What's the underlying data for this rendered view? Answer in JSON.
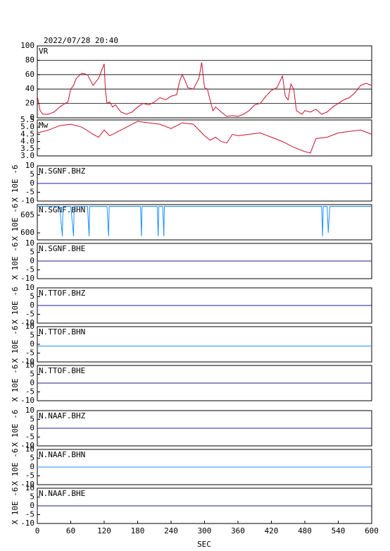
{
  "title": "2022/07/28 20:40",
  "x_axis": {
    "xlim": [
      0,
      600
    ],
    "xticks": [
      0,
      60,
      120,
      180,
      240,
      300,
      360,
      420,
      480,
      540,
      600
    ],
    "xlabel": "SEC"
  },
  "chart_data": [
    {
      "type": "line",
      "label": "VR",
      "color": "#c8102e",
      "grid": true,
      "ylim": [
        0,
        100
      ],
      "yticks": [
        0,
        20,
        40,
        60,
        80,
        100
      ],
      "x": [
        0,
        5,
        10,
        20,
        30,
        40,
        50,
        55,
        60,
        65,
        70,
        80,
        90,
        100,
        110,
        115,
        120,
        122,
        125,
        130,
        135,
        140,
        150,
        160,
        170,
        180,
        190,
        200,
        210,
        220,
        230,
        240,
        250,
        255,
        260,
        265,
        270,
        280,
        290,
        295,
        300,
        305,
        310,
        315,
        320,
        330,
        340,
        350,
        360,
        370,
        380,
        390,
        400,
        410,
        420,
        430,
        440,
        445,
        450,
        455,
        460,
        465,
        475,
        480,
        490,
        500,
        510,
        520,
        530,
        540,
        550,
        560,
        570,
        580,
        590,
        600
      ],
      "values": [
        30,
        10,
        5,
        5,
        8,
        15,
        20,
        22,
        40,
        45,
        55,
        62,
        60,
        45,
        55,
        65,
        75,
        40,
        20,
        22,
        15,
        18,
        8,
        5,
        8,
        15,
        20,
        18,
        22,
        28,
        25,
        30,
        32,
        50,
        60,
        52,
        42,
        40,
        55,
        77,
        42,
        40,
        25,
        10,
        15,
        8,
        2,
        3,
        2,
        5,
        10,
        18,
        20,
        30,
        38,
        42,
        58,
        30,
        25,
        47,
        40,
        10,
        5,
        10,
        8,
        12,
        5,
        8,
        15,
        20,
        25,
        28,
        35,
        45,
        48,
        45
      ]
    },
    {
      "type": "line",
      "label": "Mw",
      "color": "#c8102e",
      "grid": false,
      "ylim": [
        3,
        5.5
      ],
      "yticks": [
        {
          "value": 3,
          "label": "3.0"
        },
        3.5,
        {
          "value": 4,
          "label": "4.0"
        },
        4.5,
        {
          "value": 5,
          "label": "5.0"
        },
        5.5
      ],
      "x": [
        0,
        20,
        40,
        60,
        80,
        100,
        110,
        120,
        130,
        140,
        150,
        160,
        170,
        180,
        200,
        220,
        240,
        260,
        280,
        300,
        310,
        320,
        330,
        340,
        350,
        360,
        380,
        400,
        420,
        440,
        460,
        480,
        490,
        500,
        520,
        540,
        560,
        580,
        600
      ],
      "values": [
        4.6,
        4.8,
        5.1,
        5.2,
        5.0,
        4.5,
        4.3,
        4.8,
        4.4,
        4.6,
        4.8,
        5.0,
        5.2,
        5.4,
        5.3,
        5.2,
        4.9,
        5.3,
        5.2,
        4.4,
        4.1,
        4.3,
        4.0,
        3.9,
        4.5,
        4.4,
        4.5,
        4.6,
        4.3,
        4.0,
        3.6,
        3.3,
        3.2,
        4.2,
        4.3,
        4.6,
        4.7,
        4.8,
        4.5
      ]
    },
    {
      "type": "line",
      "label": "N.SGNF.BHZ",
      "ylabel": "X 10E -6",
      "color": "#1e1ea0",
      "grid": false,
      "ylim": [
        -10,
        10
      ],
      "yticks": [
        -10,
        -5,
        0,
        5,
        10
      ],
      "x": [
        0,
        100,
        200,
        300,
        400,
        500,
        600
      ],
      "values": [
        0,
        0,
        0,
        0,
        0,
        0,
        0
      ]
    },
    {
      "type": "line",
      "label": "N.SGNF.BHN",
      "ylabel": "X 10E -6",
      "color": "#1e90ff",
      "grid": false,
      "ylim": [
        598,
        608
      ],
      "yticks": [
        600,
        605
      ],
      "x": [
        0,
        40,
        45,
        46,
        60,
        65,
        66,
        90,
        93,
        94,
        125,
        128,
        129,
        185,
        187,
        188,
        215,
        217,
        218,
        225,
        227,
        228,
        300,
        510,
        512,
        513,
        520,
        522,
        525,
        600
      ],
      "values": [
        607.5,
        607.5,
        599,
        607.5,
        607.5,
        599,
        607.5,
        607.5,
        599,
        607.5,
        607.5,
        599,
        607.5,
        607.5,
        599,
        607.5,
        607.5,
        599,
        607.5,
        607.5,
        599,
        607.5,
        607.5,
        607.5,
        599,
        607.5,
        607.5,
        600,
        607.5,
        607.5
      ]
    },
    {
      "type": "line",
      "label": "N.SGNF.BHE",
      "ylabel": "X 10E -6",
      "color": "#1a237e",
      "grid": false,
      "ylim": [
        -10,
        10
      ],
      "yticks": [
        -10,
        -5,
        0,
        5,
        10
      ],
      "x": [
        0,
        100,
        200,
        300,
        400,
        500,
        600
      ],
      "values": [
        0,
        0,
        0,
        0,
        0,
        0,
        0
      ]
    },
    {
      "type": "line",
      "label": "N.TTOF.BHZ",
      "ylabel": "X 10E -6",
      "color": "#1e1ea0",
      "grid": false,
      "ylim": [
        -10,
        10
      ],
      "yticks": [
        -10,
        -5,
        0,
        5,
        10
      ],
      "x": [
        0,
        100,
        200,
        300,
        400,
        500,
        600
      ],
      "values": [
        0,
        0,
        0,
        0,
        0,
        0,
        0
      ]
    },
    {
      "type": "line",
      "label": "N.TTOF.BHN",
      "ylabel": "X 10E -6",
      "color": "#1e90ff",
      "grid": false,
      "ylim": [
        -10,
        10
      ],
      "yticks": [
        -10,
        -5,
        0,
        5,
        10
      ],
      "x": [
        0,
        100,
        200,
        300,
        400,
        500,
        600
      ],
      "values": [
        -1,
        -1,
        -1,
        -1,
        -1,
        -1,
        -1
      ]
    },
    {
      "type": "line",
      "label": "N.TTOF.BHE",
      "ylabel": "X 10E -6",
      "color": "#1a237e",
      "grid": false,
      "ylim": [
        -10,
        10
      ],
      "yticks": [
        -10,
        -5,
        0,
        5,
        10
      ],
      "x": [
        0,
        100,
        200,
        300,
        400,
        500,
        600
      ],
      "values": [
        0,
        0,
        0,
        0,
        0,
        0,
        0
      ]
    },
    {
      "type": "line",
      "label": "N.NAAF.BHZ",
      "ylabel": "X 10E -6",
      "color": "#1e1ea0",
      "grid": false,
      "ylim": [
        -10,
        10
      ],
      "yticks": [
        -10,
        -5,
        0,
        5,
        10
      ],
      "x": [
        0,
        100,
        200,
        300,
        400,
        500,
        600
      ],
      "values": [
        0,
        0,
        0,
        0,
        0,
        0,
        0
      ]
    },
    {
      "type": "line",
      "label": "N.NAAF.BHN",
      "ylabel": "X 10E -6",
      "color": "#1e90ff",
      "grid": false,
      "ylim": [
        -10,
        10
      ],
      "yticks": [
        -10,
        -5,
        0,
        5,
        10
      ],
      "x": [
        0,
        100,
        200,
        300,
        400,
        500,
        600
      ],
      "values": [
        0,
        0,
        0,
        0,
        0,
        0,
        0
      ]
    },
    {
      "type": "line",
      "label": "N.NAAF.BHE",
      "ylabel": "X 10E -6",
      "color": "#1a237e",
      "grid": false,
      "ylim": [
        -10,
        10
      ],
      "yticks": [
        -10,
        -5,
        0,
        5,
        10
      ],
      "x": [
        0,
        100,
        200,
        300,
        400,
        500,
        600
      ],
      "values": [
        0,
        0,
        0,
        0,
        0,
        0,
        0
      ]
    }
  ]
}
